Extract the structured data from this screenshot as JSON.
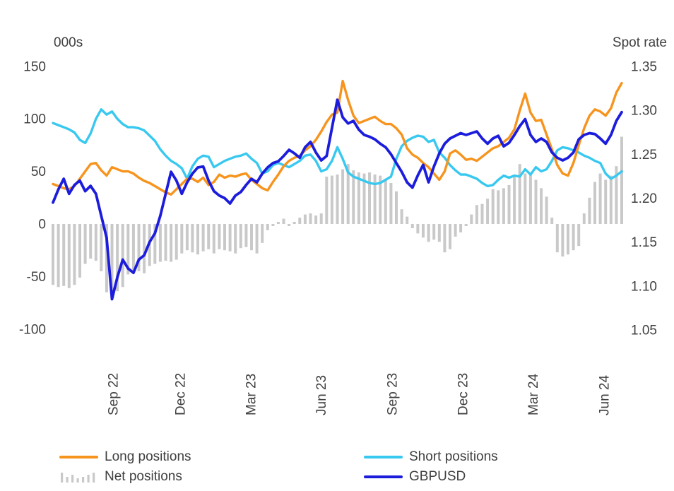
{
  "chart_data": {
    "type": "combo-bar-line",
    "title": "",
    "frequency": "weekly",
    "left_axis": {
      "label": "000s",
      "ticks": [
        150,
        100,
        50,
        0,
        -50,
        -100
      ],
      "min": -100,
      "max": 150
    },
    "right_axis": {
      "label": "Spot rate",
      "ticks": [
        1.35,
        1.3,
        1.25,
        1.2,
        1.15,
        1.1,
        1.05
      ],
      "min": 1.05,
      "max": 1.35
    },
    "x_axis": {
      "tick_labels": [
        "Sep 22",
        "Dec 22",
        "Mar 23",
        "Jun 23",
        "Sep 23",
        "Dec 23",
        "Mar 24",
        "Jun 24"
      ],
      "tick_indices": [
        11.2,
        23.7,
        36.9,
        50.0,
        63.2,
        76.4,
        89.5,
        102.7
      ],
      "grid": false
    },
    "dates": [
      "2022-07-12",
      "2022-07-19",
      "2022-07-26",
      "2022-08-02",
      "2022-08-09",
      "2022-08-16",
      "2022-08-23",
      "2022-08-30",
      "2022-09-06",
      "2022-09-13",
      "2022-09-20",
      "2022-09-27",
      "2022-10-04",
      "2022-10-11",
      "2022-10-18",
      "2022-10-25",
      "2022-11-01",
      "2022-11-08",
      "2022-11-15",
      "2022-11-22",
      "2022-11-29",
      "2022-12-06",
      "2022-12-13",
      "2022-12-20",
      "2022-12-27",
      "2023-01-03",
      "2023-01-10",
      "2023-01-17",
      "2023-01-24",
      "2023-01-31",
      "2023-02-07",
      "2023-02-14",
      "2023-02-21",
      "2023-02-28",
      "2023-03-07",
      "2023-03-14",
      "2023-03-21",
      "2023-03-28",
      "2023-04-04",
      "2023-04-11",
      "2023-04-18",
      "2023-04-25",
      "2023-05-02",
      "2023-05-09",
      "2023-05-16",
      "2023-05-23",
      "2023-05-30",
      "2023-06-06",
      "2023-06-13",
      "2023-06-20",
      "2023-06-27",
      "2023-07-04",
      "2023-07-11",
      "2023-07-18",
      "2023-07-25",
      "2023-08-01",
      "2023-08-08",
      "2023-08-15",
      "2023-08-22",
      "2023-08-29",
      "2023-09-05",
      "2023-09-12",
      "2023-09-19",
      "2023-09-26",
      "2023-10-03",
      "2023-10-10",
      "2023-10-17",
      "2023-10-24",
      "2023-10-31",
      "2023-11-07",
      "2023-11-14",
      "2023-11-21",
      "2023-11-28",
      "2023-12-05",
      "2023-12-12",
      "2023-12-19",
      "2023-12-26",
      "2024-01-02",
      "2024-01-09",
      "2024-01-16",
      "2024-01-23",
      "2024-01-30",
      "2024-02-06",
      "2024-02-13",
      "2024-02-20",
      "2024-02-27",
      "2024-03-05",
      "2024-03-12",
      "2024-03-19",
      "2024-03-26",
      "2024-04-02",
      "2024-04-09",
      "2024-04-16",
      "2024-04-23",
      "2024-04-30",
      "2024-05-07",
      "2024-05-14",
      "2024-05-21",
      "2024-05-28",
      "2024-06-04",
      "2024-06-11",
      "2024-06-18",
      "2024-06-25",
      "2024-07-02",
      "2024-07-09",
      "2024-07-16",
      "2024-07-23"
    ],
    "series": [
      {
        "name": "Net positions",
        "type": "bar",
        "axis": "left",
        "color": "#C9C9C9",
        "values": [
          -58,
          -60,
          -59,
          -61,
          -58,
          -51,
          -38,
          -33,
          -35,
          -45,
          -65,
          -70,
          -64,
          -60,
          -48,
          -46,
          -45,
          -47,
          -40,
          -38,
          -36,
          -35,
          -36,
          -34,
          -28,
          -25,
          -27,
          -29,
          -26,
          -24,
          -28,
          -24,
          -25,
          -26,
          -28,
          -23,
          -22,
          -25,
          -28,
          -18,
          -6,
          -2,
          2,
          5,
          -2,
          2,
          6,
          9,
          10,
          8,
          10,
          45,
          46,
          47,
          52,
          57,
          51,
          49,
          48,
          49,
          47,
          46,
          43,
          39,
          31,
          14,
          7,
          -4,
          -9,
          -13,
          -17,
          -15,
          -17,
          -27,
          -24,
          -12,
          -8,
          -2,
          9,
          18,
          19,
          24,
          33,
          32,
          34,
          37,
          45,
          57,
          48,
          47,
          42,
          34,
          26,
          6,
          -27,
          -31,
          -29,
          -25,
          -21,
          10,
          25,
          40,
          48,
          42,
          46,
          55,
          83
        ]
      },
      {
        "name": "Short positions",
        "type": "line",
        "axis": "left",
        "color": "#38C8F0",
        "values": [
          96,
          94,
          92,
          90,
          87,
          80,
          77,
          86,
          100,
          109,
          104,
          107,
          100,
          95,
          92,
          92,
          91,
          89,
          84,
          79,
          71,
          65,
          60,
          57,
          53,
          43,
          55,
          62,
          65,
          64,
          54,
          57,
          60,
          62,
          64,
          65,
          67,
          62,
          58,
          48,
          50,
          56,
          58,
          56,
          54,
          57,
          60,
          65,
          66,
          60,
          50,
          52,
          60,
          73,
          62,
          49,
          45,
          43,
          41,
          39,
          38,
          39,
          42,
          45,
          62,
          74,
          79,
          82,
          84,
          83,
          78,
          80,
          68,
          63,
          56,
          51,
          47,
          47,
          45,
          43,
          39,
          36,
          37,
          42,
          46,
          44,
          46,
          45,
          52,
          47,
          54,
          50,
          52,
          60,
          70,
          73,
          72,
          70,
          68,
          65,
          63,
          60,
          58,
          48,
          43,
          46,
          50
        ]
      },
      {
        "name": "Long positions",
        "type": "line",
        "axis": "left",
        "color": "#F6941D",
        "values": [
          38,
          36,
          34,
          33,
          36,
          43,
          50,
          57,
          58,
          51,
          46,
          54,
          52,
          50,
          50,
          48,
          44,
          41,
          39,
          36,
          33,
          30,
          28,
          33,
          38,
          43,
          43,
          40,
          44,
          37,
          40,
          47,
          44,
          46,
          45,
          47,
          48,
          42,
          38,
          34,
          32,
          40,
          47,
          55,
          60,
          63,
          65,
          70,
          74,
          80,
          88,
          97,
          104,
          106,
          136,
          118,
          103,
          96,
          98,
          100,
          102,
          98,
          95,
          95,
          91,
          85,
          72,
          66,
          63,
          58,
          54,
          48,
          42,
          50,
          67,
          70,
          66,
          61,
          62,
          60,
          64,
          68,
          72,
          74,
          78,
          82,
          90,
          108,
          124,
          106,
          98,
          99,
          85,
          71,
          56,
          48,
          46,
          58,
          75,
          91,
          103,
          109,
          107,
          103,
          110,
          125,
          134
        ]
      },
      {
        "name": "GBPUSD",
        "type": "line",
        "axis": "right",
        "color": "#1C1CDC",
        "values": [
          1.195,
          1.21,
          1.222,
          1.205,
          1.215,
          1.22,
          1.208,
          1.214,
          1.205,
          1.18,
          1.155,
          1.085,
          1.11,
          1.13,
          1.12,
          1.115,
          1.13,
          1.135,
          1.15,
          1.16,
          1.18,
          1.205,
          1.23,
          1.22,
          1.205,
          1.218,
          1.228,
          1.235,
          1.236,
          1.22,
          1.208,
          1.203,
          1.2,
          1.194,
          1.203,
          1.207,
          1.215,
          1.222,
          1.218,
          1.228,
          1.235,
          1.24,
          1.242,
          1.248,
          1.255,
          1.251,
          1.246,
          1.258,
          1.264,
          1.252,
          1.243,
          1.248,
          1.28,
          1.312,
          1.292,
          1.285,
          1.288,
          1.278,
          1.272,
          1.27,
          1.267,
          1.262,
          1.258,
          1.25,
          1.24,
          1.23,
          1.218,
          1.212,
          1.226,
          1.238,
          1.218,
          1.236,
          1.251,
          1.262,
          1.268,
          1.271,
          1.274,
          1.272,
          1.274,
          1.276,
          1.268,
          1.262,
          1.268,
          1.271,
          1.259,
          1.263,
          1.272,
          1.282,
          1.29,
          1.272,
          1.264,
          1.268,
          1.264,
          1.252,
          1.246,
          1.243,
          1.246,
          1.252,
          1.267,
          1.272,
          1.274,
          1.273,
          1.268,
          1.262,
          1.272,
          1.288,
          1.298
        ]
      }
    ],
    "legend": {
      "position": "bottom",
      "rows": [
        [
          "Long positions",
          "Short positions"
        ],
        [
          "Net positions",
          "GBPUSD"
        ]
      ]
    }
  }
}
